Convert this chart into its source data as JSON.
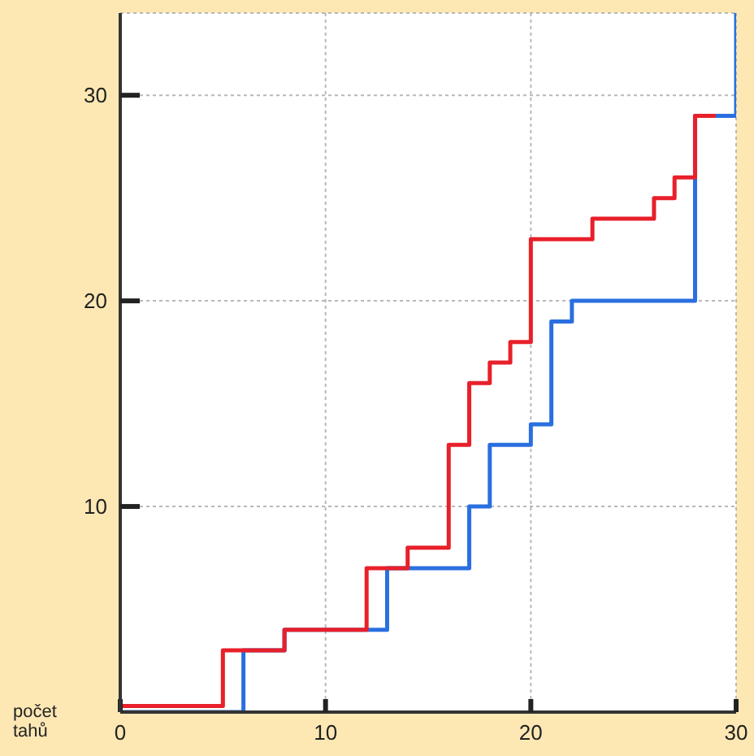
{
  "chart_data": {
    "type": "step",
    "xlabel": "počet tahů",
    "xlim": [
      0,
      30
    ],
    "xticks": [
      0,
      10,
      20,
      30
    ],
    "ylim": [
      0,
      34
    ],
    "yticks": [
      10,
      20,
      30
    ],
    "grid": true,
    "line_style": "solid",
    "marker": "none",
    "series": [
      {
        "color": "#e8202a",
        "x": [
          0,
          5,
          8,
          12,
          14,
          16,
          17,
          18,
          19,
          20,
          23,
          26,
          27,
          28,
          29
        ],
        "values": [
          0.3,
          3,
          4,
          7,
          8,
          13,
          16,
          17,
          18,
          23,
          24,
          25,
          26,
          29,
          29
        ]
      },
      {
        "color": "#2a6fe0",
        "x": [
          0,
          6,
          8,
          13,
          17,
          18,
          20,
          21,
          22,
          28,
          30
        ],
        "values": [
          0,
          3,
          4,
          7,
          10,
          13,
          14,
          19,
          20,
          29,
          34
        ]
      }
    ]
  }
}
